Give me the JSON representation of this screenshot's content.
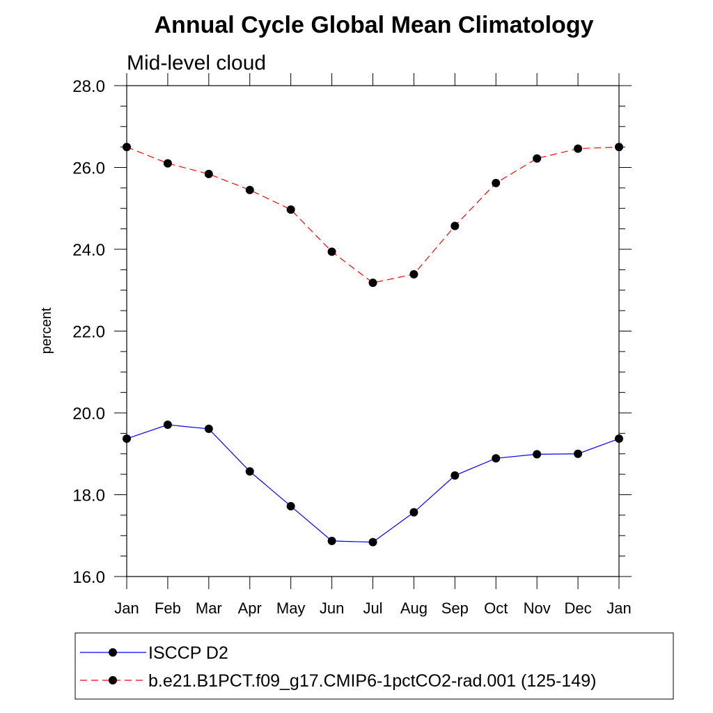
{
  "chart_data": {
    "type": "line",
    "title": "Annual Cycle Global Mean Climatology",
    "subtitle": "Mid-level cloud",
    "xlabel": "",
    "ylabel": "percent",
    "categories": [
      "Jan",
      "Feb",
      "Mar",
      "Apr",
      "May",
      "Jun",
      "Jul",
      "Aug",
      "Sep",
      "Oct",
      "Nov",
      "Dec",
      "Jan"
    ],
    "ylim": [
      16.0,
      28.0
    ],
    "yticks": [
      "16.0",
      "18.0",
      "20.0",
      "22.0",
      "24.0",
      "26.0",
      "28.0"
    ],
    "grid": false,
    "legend_position": "bottom",
    "series": [
      {
        "name": "ISCCP D2",
        "color": "#0000ff",
        "dash": "solid",
        "values": [
          19.37,
          19.71,
          19.61,
          18.57,
          17.72,
          16.87,
          16.84,
          17.57,
          18.47,
          18.89,
          18.99,
          19.0,
          19.37
        ]
      },
      {
        "name": "b.e21.B1PCT.f09_g17.CMIP6-1pctCO2-rad.001 (125-149)",
        "color": "#ff0000",
        "dash": "dashed",
        "values": [
          26.5,
          26.1,
          25.84,
          25.45,
          24.97,
          23.94,
          23.18,
          23.39,
          24.57,
          25.62,
          26.22,
          26.46,
          26.5
        ]
      }
    ]
  }
}
